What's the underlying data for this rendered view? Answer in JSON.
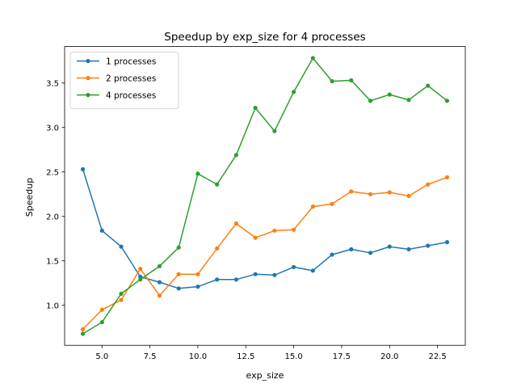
{
  "chart_data": {
    "type": "line",
    "title": "Speedup by exp_size for 4 processes",
    "xlabel": "exp_size",
    "ylabel": "Speedup",
    "xlim": [
      3.05,
      23.95
    ],
    "ylim": [
      0.55,
      3.91
    ],
    "xticks": [
      5.0,
      7.5,
      10.0,
      12.5,
      15.0,
      17.5,
      20.0,
      22.5
    ],
    "xtick_labels": [
      "5.0",
      "7.5",
      "10.0",
      "12.5",
      "15.0",
      "17.5",
      "20.0",
      "22.5"
    ],
    "yticks": [
      1.0,
      1.5,
      2.0,
      2.5,
      3.0,
      3.5
    ],
    "ytick_labels": [
      "1.0",
      "1.5",
      "2.0",
      "2.5",
      "3.0",
      "3.5"
    ],
    "grid": false,
    "legend": "top-left",
    "x": [
      4,
      5,
      6,
      7,
      8,
      9,
      10,
      11,
      12,
      13,
      14,
      15,
      16,
      17,
      18,
      19,
      20,
      21,
      22,
      23
    ],
    "series": [
      {
        "name": "1 processes",
        "color": "#1f77b4",
        "values": [
          2.53,
          1.84,
          1.66,
          1.32,
          1.26,
          1.19,
          1.21,
          1.29,
          1.29,
          1.35,
          1.34,
          1.43,
          1.39,
          1.57,
          1.63,
          1.59,
          1.66,
          1.63,
          1.67,
          1.71
        ]
      },
      {
        "name": "2 processes",
        "color": "#ff7f0e",
        "values": [
          0.73,
          0.95,
          1.06,
          1.41,
          1.11,
          1.35,
          1.35,
          1.64,
          1.92,
          1.76,
          1.84,
          1.85,
          2.11,
          2.14,
          2.28,
          2.25,
          2.27,
          2.23,
          2.36,
          2.44
        ]
      },
      {
        "name": "4 processes",
        "color": "#2ca02c",
        "values": [
          0.68,
          0.81,
          1.13,
          1.29,
          1.44,
          1.65,
          2.48,
          2.36,
          2.69,
          3.22,
          2.96,
          3.4,
          3.78,
          3.52,
          3.53,
          3.3,
          3.37,
          3.31,
          3.47,
          3.3
        ]
      }
    ]
  }
}
